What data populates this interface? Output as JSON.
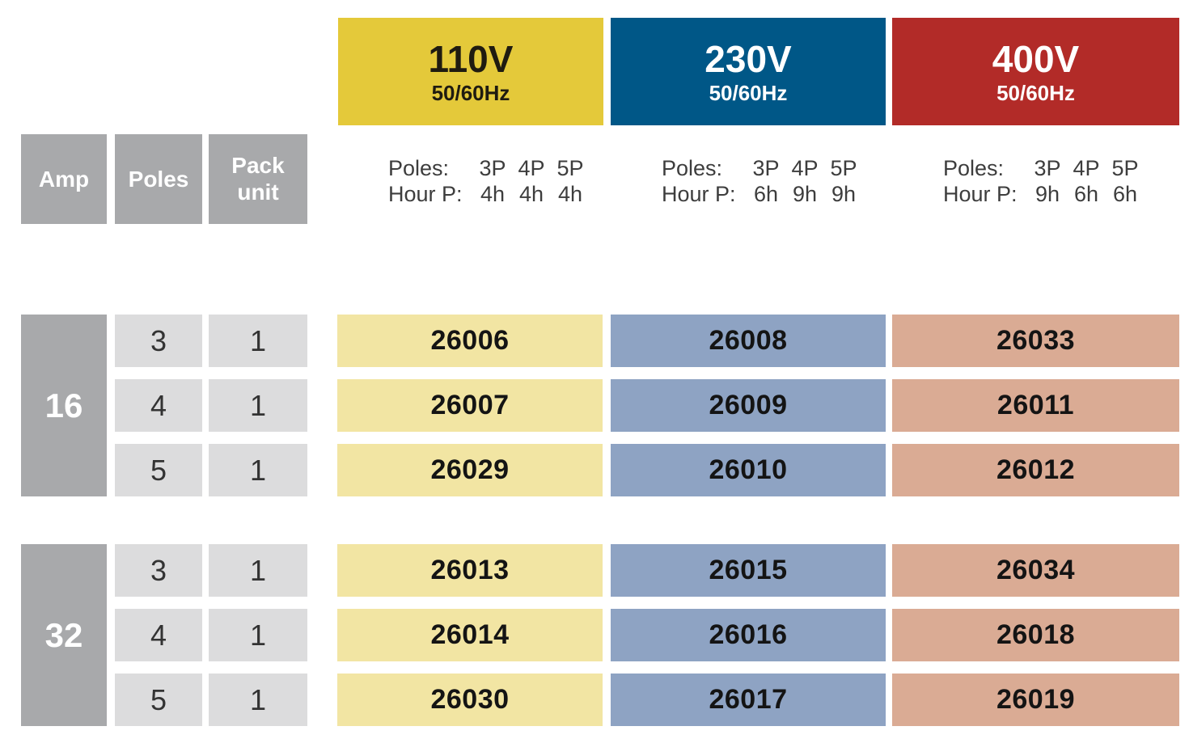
{
  "columns": [
    {
      "id": "110v",
      "label": "110V",
      "frequency": "50/60Hz",
      "poles_label": "Poles:",
      "hour_label": "Hour P:",
      "poles": [
        "3P",
        "4P",
        "5P"
      ],
      "hours": [
        "4h",
        "4h",
        "4h"
      ],
      "header_bg": "#e4c93a",
      "header_text": "#1f1b10",
      "cell_bg": "#f2e5a3"
    },
    {
      "id": "230v",
      "label": "230V",
      "frequency": "50/60Hz",
      "poles_label": "Poles:",
      "hour_label": "Hour P:",
      "poles": [
        "3P",
        "4P",
        "5P"
      ],
      "hours": [
        "6h",
        "9h",
        "9h"
      ],
      "header_bg": "#005787",
      "header_text": "#ffffff",
      "cell_bg": "#8ea3c3"
    },
    {
      "id": "400v",
      "label": "400V",
      "frequency": "50/60Hz",
      "poles_label": "Poles:",
      "hour_label": "Hour P:",
      "poles": [
        "3P",
        "4P",
        "5P"
      ],
      "hours": [
        "9h",
        "6h",
        "6h"
      ],
      "header_bg": "#b22b28",
      "header_text": "#ffffff",
      "cell_bg": "#daab94"
    }
  ],
  "row_headers": {
    "amp": "Amp",
    "poles": "Poles",
    "pack_unit": "Pack unit"
  },
  "groups": [
    {
      "amp": "16",
      "rows": [
        {
          "poles": "3",
          "pack_unit": "1",
          "part_110v": "26006",
          "part_230v": "26008",
          "part_400v": "26033"
        },
        {
          "poles": "4",
          "pack_unit": "1",
          "part_110v": "26007",
          "part_230v": "26009",
          "part_400v": "26011"
        },
        {
          "poles": "5",
          "pack_unit": "1",
          "part_110v": "26029",
          "part_230v": "26010",
          "part_400v": "26012"
        }
      ]
    },
    {
      "amp": "32",
      "rows": [
        {
          "poles": "3",
          "pack_unit": "1",
          "part_110v": "26013",
          "part_230v": "26015",
          "part_400v": "26034"
        },
        {
          "poles": "4",
          "pack_unit": "1",
          "part_110v": "26014",
          "part_230v": "26016",
          "part_400v": "26018"
        },
        {
          "poles": "5",
          "pack_unit": "1",
          "part_110v": "26030",
          "part_230v": "26017",
          "part_400v": "26019"
        }
      ]
    }
  ],
  "colors": {
    "header_gray": "#a8a9ab",
    "cell_gray": "#dcdcdd",
    "yellow_header": "#e4c93a",
    "blue_header": "#005787",
    "red_header": "#b22b28",
    "yellow_cell": "#f2e5a3",
    "blue_cell": "#8ea3c3",
    "salmon_cell": "#daab94"
  }
}
